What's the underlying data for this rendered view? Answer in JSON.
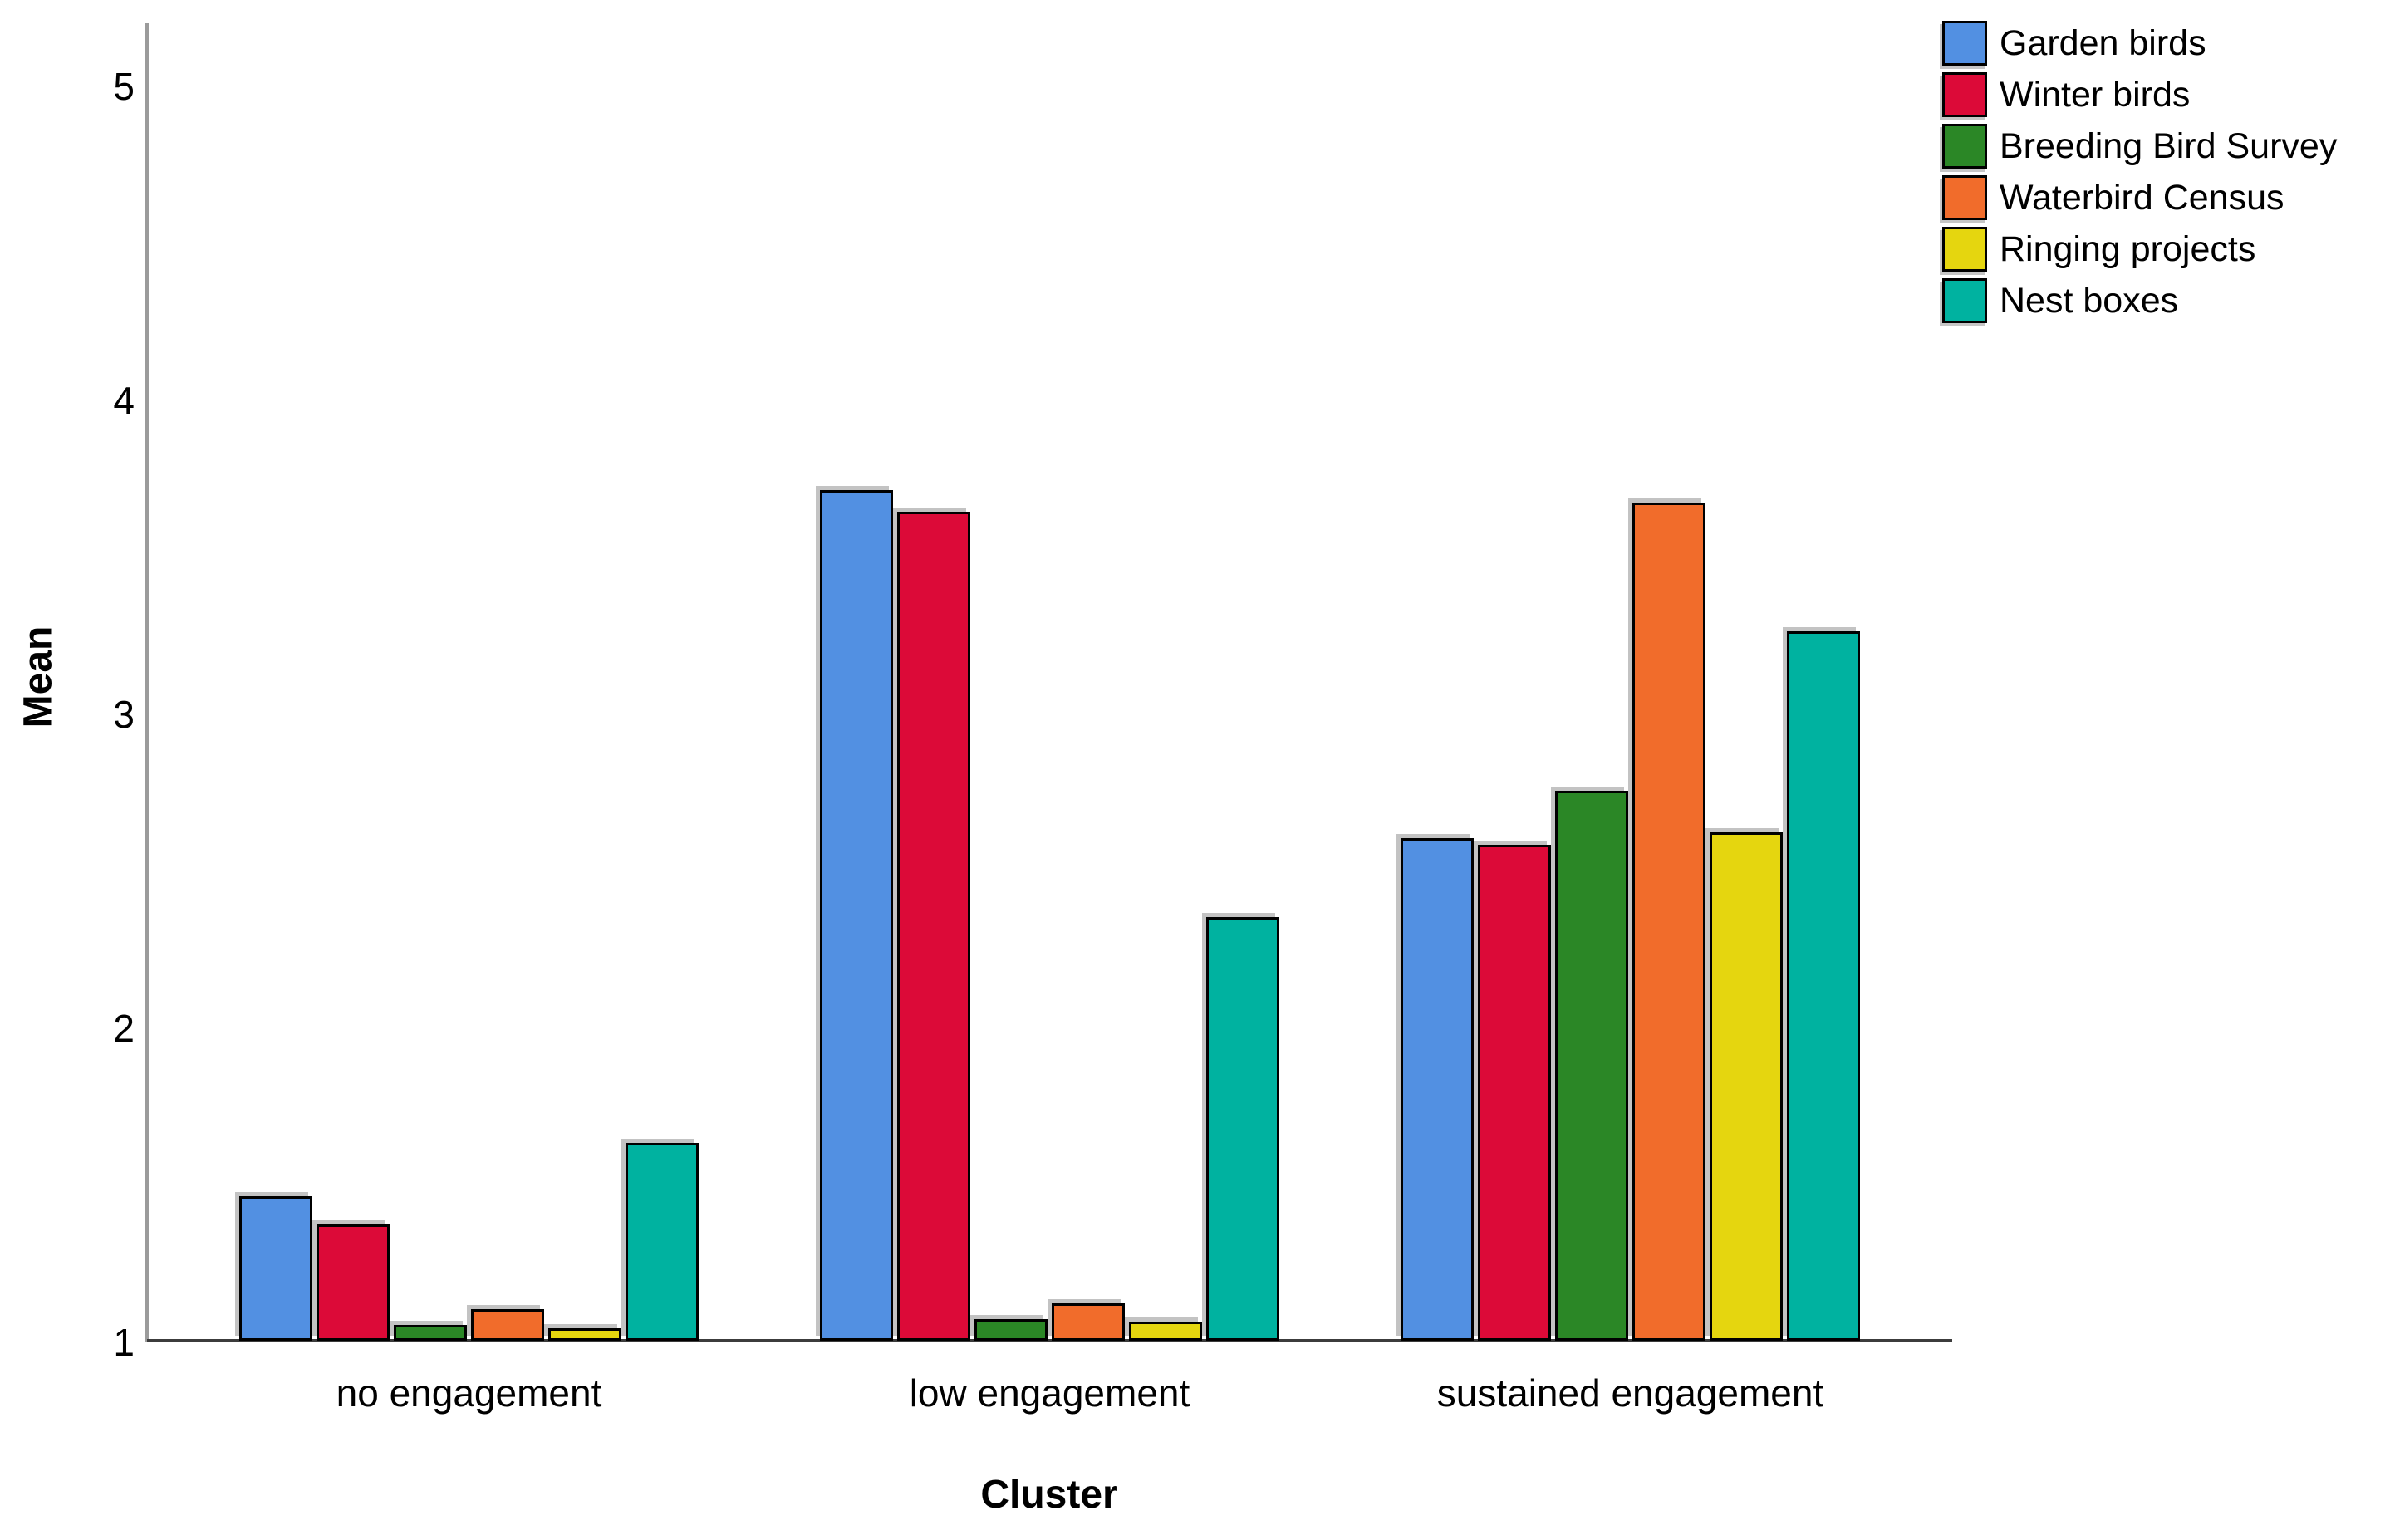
{
  "chart_data": {
    "type": "bar",
    "title": "",
    "xlabel": "Cluster",
    "ylabel": "Mean",
    "categories": [
      "no engagement",
      "low engagement",
      "sustained engagement"
    ],
    "series": [
      {
        "name": "Garden birds",
        "color": "#5290E2",
        "values": [
          1.46,
          3.71,
          2.6
        ]
      },
      {
        "name": "Winter birds",
        "color": "#DC0A38",
        "values": [
          1.37,
          3.64,
          2.58
        ]
      },
      {
        "name": "Breeding Bird Survey",
        "color": "#2B8726",
        "values": [
          1.05,
          1.07,
          2.75
        ]
      },
      {
        "name": "Waterbird Census",
        "color": "#F16C2B",
        "values": [
          1.1,
          1.12,
          3.67
        ]
      },
      {
        "name": "Ringing projects",
        "color": "#E5D60F",
        "values": [
          1.04,
          1.06,
          2.62
        ]
      },
      {
        "name": "Nest boxes",
        "color": "#00B2A0",
        "values": [
          1.63,
          2.35,
          3.26
        ]
      }
    ],
    "yticks": [
      1,
      2,
      3,
      4,
      5
    ],
    "ylim": [
      1,
      5.2
    ],
    "grid": false,
    "legend_position": "top-right",
    "axis_colors": {
      "y_axis": "#9b9b9b",
      "x_axis": "#3c3c3c"
    }
  }
}
